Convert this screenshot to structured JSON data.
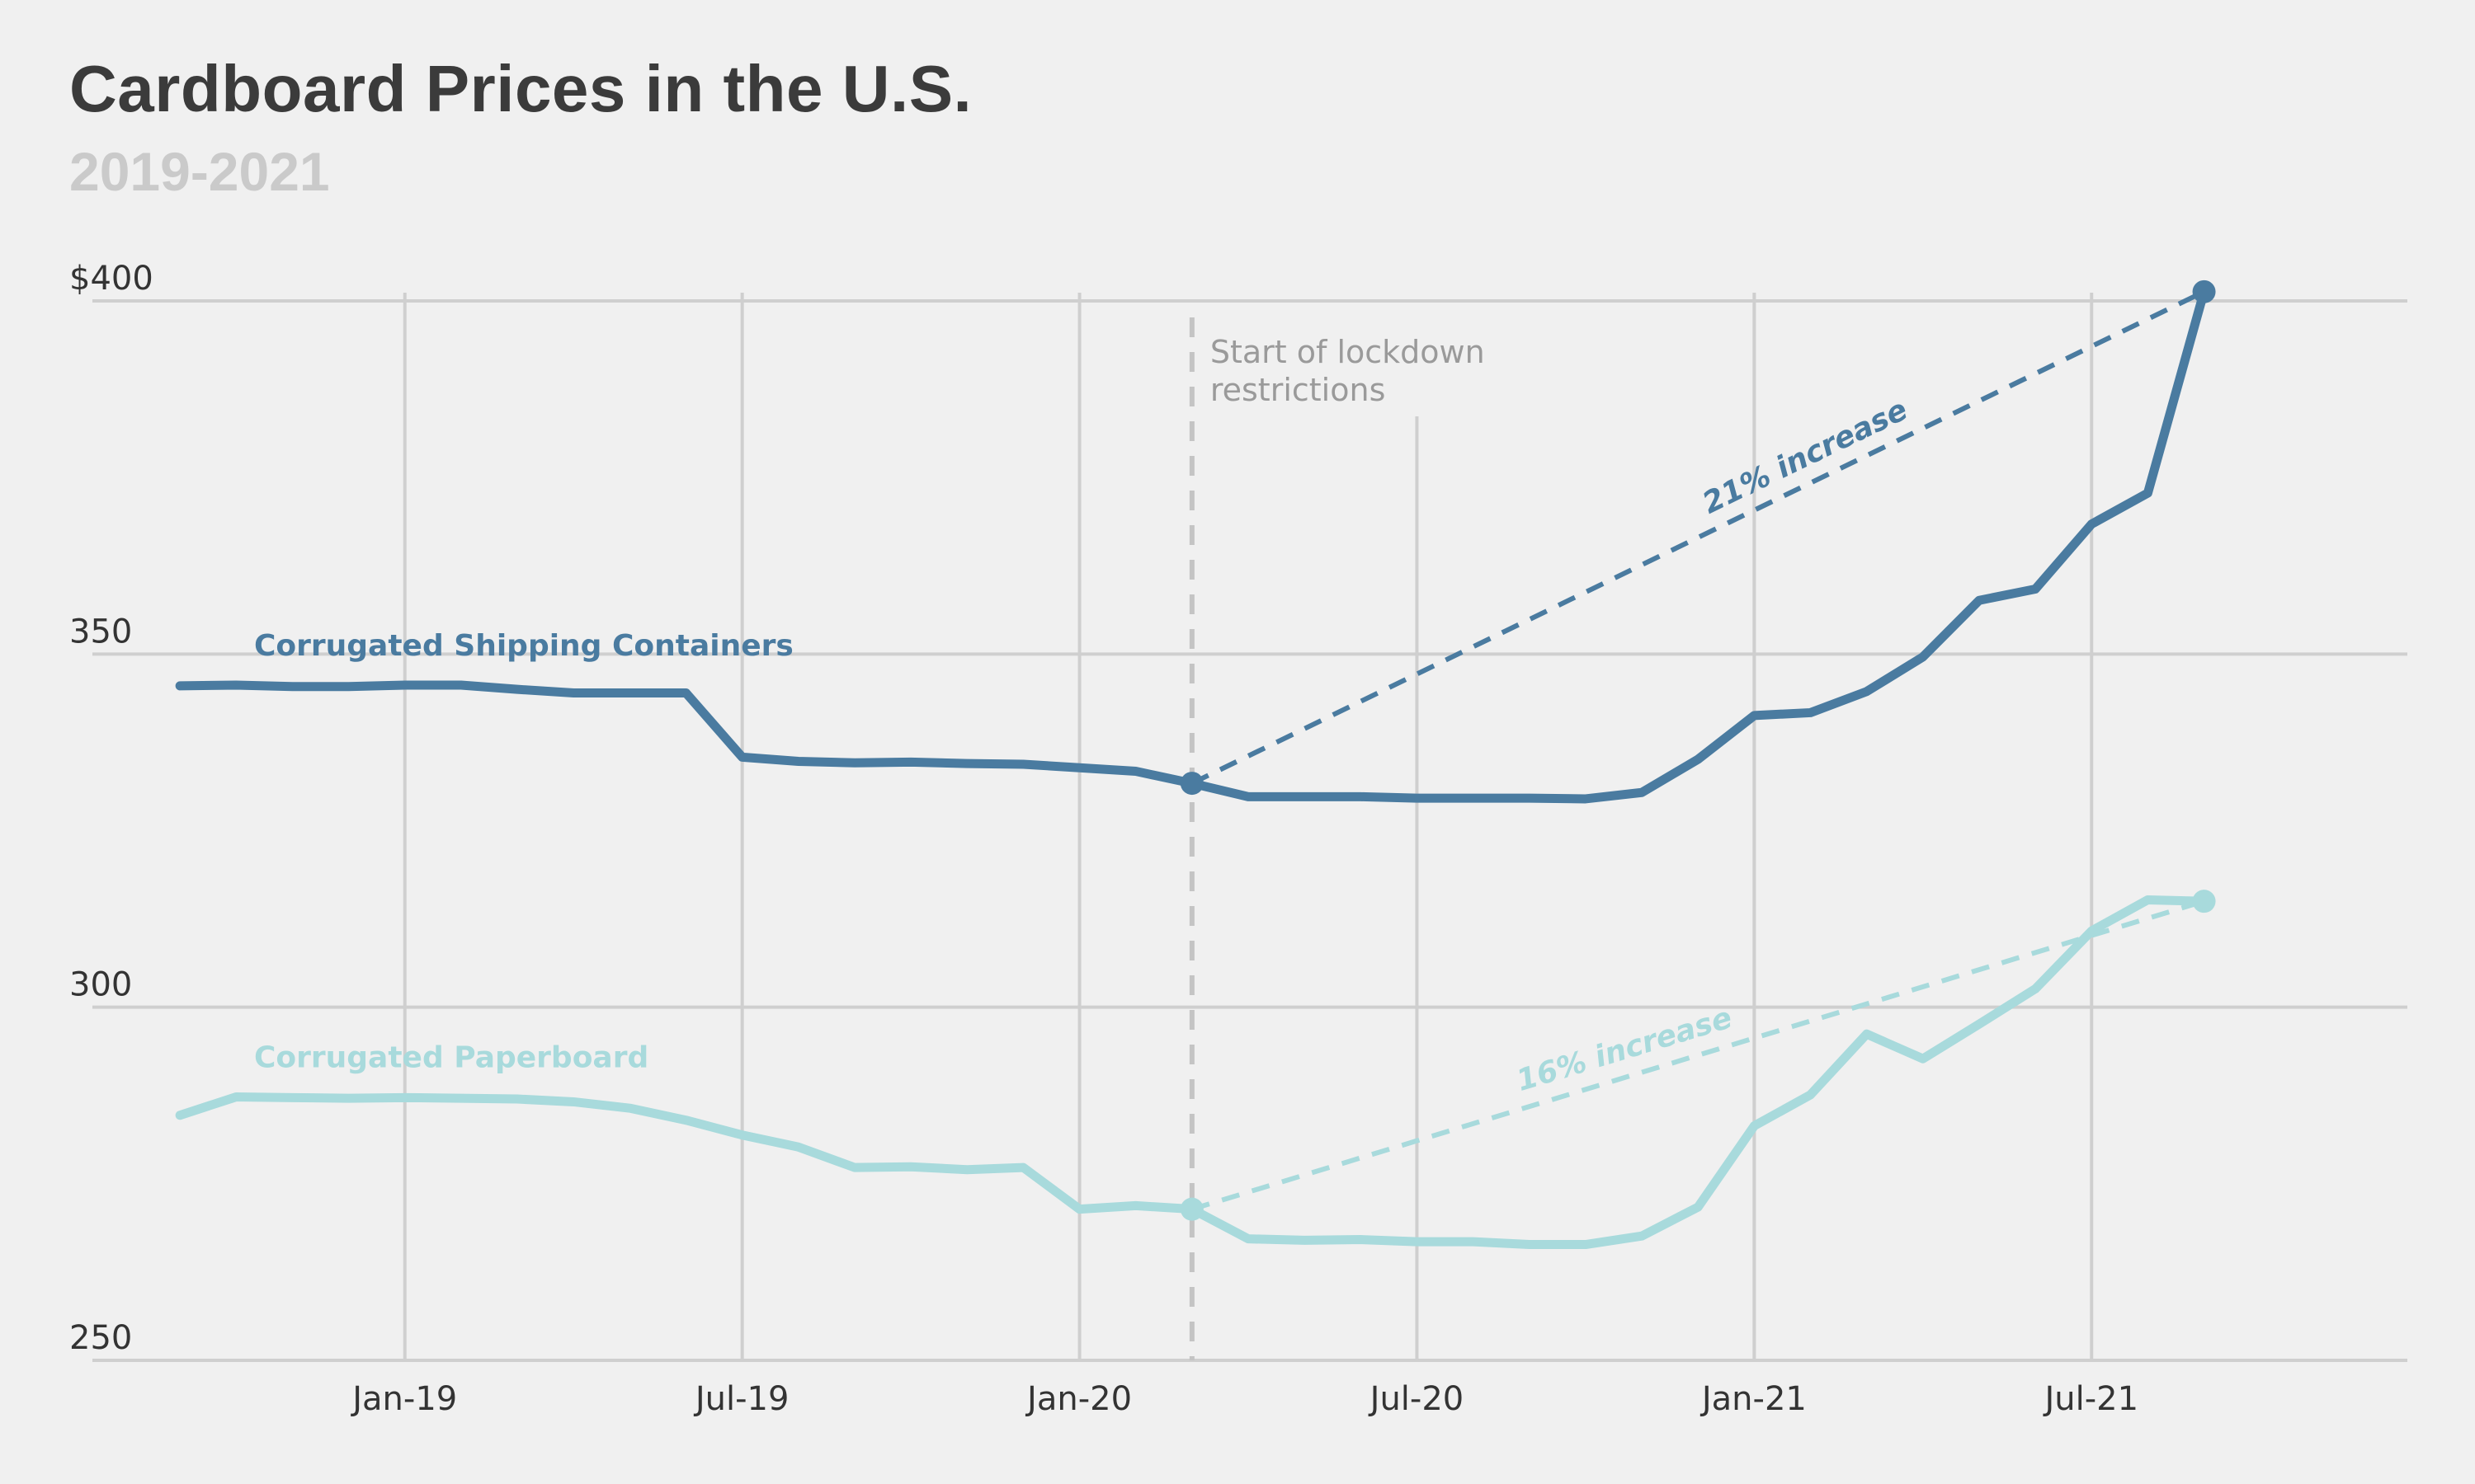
{
  "chart_data": {
    "type": "line",
    "title": "Cardboard Prices in the U.S.",
    "subtitle": "2019-2021",
    "x_start": "2018-09",
    "x_end": "2021-10",
    "xlim": [
      "2018-08",
      "2021-12"
    ],
    "ylim": [
      250,
      400
    ],
    "y_ticks": [
      {
        "value": 250,
        "label": "250"
      },
      {
        "value": 300,
        "label": "300"
      },
      {
        "value": 350,
        "label": "350"
      },
      {
        "value": 400,
        "label": "$400"
      }
    ],
    "x_ticks": [
      {
        "date": "2019-01",
        "label": "Jan-19"
      },
      {
        "date": "2019-07",
        "label": "Jul-19"
      },
      {
        "date": "2020-01",
        "label": "Jan-20"
      },
      {
        "date": "2020-07",
        "label": "Jul-20"
      },
      {
        "date": "2021-01",
        "label": "Jan-21"
      },
      {
        "date": "2021-07",
        "label": "Jul-21"
      }
    ],
    "grid": true,
    "series": [
      {
        "name": "Corrugated Shipping Containers",
        "color": "#4a7ba0",
        "values": [
          345.5,
          345.6,
          345.4,
          345.4,
          345.6,
          345.6,
          345.0,
          344.5,
          344.5,
          344.5,
          335.4,
          334.8,
          334.6,
          334.7,
          334.5,
          334.4,
          333.9,
          333.4,
          331.7,
          329.8,
          329.8,
          329.8,
          329.6,
          329.6,
          329.6,
          329.5,
          330.4,
          335.1,
          341.3,
          341.7,
          344.7,
          349.6,
          357.6,
          359.2,
          368.4,
          372.8,
          401.3
        ],
        "endpoint_change": "21% increase"
      },
      {
        "name": "Corrugated Paperboard",
        "color": "#a8dadc",
        "values": [
          284.7,
          287.3,
          287.2,
          287.1,
          287.2,
          287.1,
          287.0,
          286.6,
          285.7,
          284.0,
          281.9,
          280.2,
          277.3,
          277.4,
          277.0,
          277.3,
          271.4,
          271.9,
          271.4,
          267.2,
          267.0,
          267.1,
          266.8,
          266.8,
          266.4,
          266.4,
          267.6,
          271.7,
          283.2,
          287.6,
          296.2,
          292.7,
          297.6,
          302.6,
          310.8,
          315.2,
          315.0
        ],
        "endpoint_change": "16% increase"
      }
    ],
    "annotations": [
      {
        "date": "2020-03",
        "text_lines": [
          "Start of lockdown",
          "restrictions"
        ]
      }
    ],
    "comparison_span": {
      "from": "2020-03",
      "to": "2021-09"
    }
  }
}
